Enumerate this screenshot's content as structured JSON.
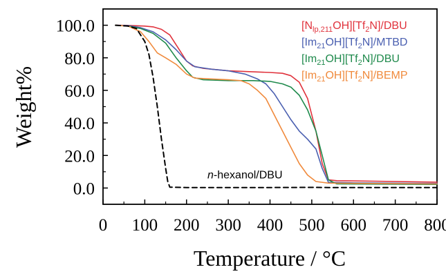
{
  "chart_data": {
    "type": "line",
    "title": "",
    "xlabel": "Temperature / °C",
    "ylabel": "Weight%",
    "xlim": [
      0,
      800
    ],
    "ylim": [
      -10,
      110
    ],
    "x_ticks": [
      0,
      100,
      200,
      300,
      400,
      500,
      600,
      700,
      800
    ],
    "x_tick_labels": [
      "0",
      "100",
      "200",
      "300",
      "400",
      "500",
      "600",
      "700",
      "800"
    ],
    "y_ticks": [
      0,
      20,
      40,
      60,
      80,
      100
    ],
    "y_tick_labels": [
      "0.0",
      "20.0",
      "40.0",
      "60.0",
      "80.0",
      "100.0"
    ],
    "grid": false,
    "legend_position": "top-right",
    "series": [
      {
        "legend_parts": [
          {
            "t": "[N"
          },
          {
            "t": "lp,211",
            "sub": true
          },
          {
            "t": "OH][Tf"
          },
          {
            "t": "2",
            "sub": true
          },
          {
            "t": "N]/DBU"
          }
        ],
        "color": "#e0323c",
        "dash": false,
        "points": [
          [
            30,
            100
          ],
          [
            60,
            99.9
          ],
          [
            100,
            99.5
          ],
          [
            120,
            99
          ],
          [
            140,
            97.5
          ],
          [
            160,
            94
          ],
          [
            180,
            86
          ],
          [
            200,
            78
          ],
          [
            215,
            75
          ],
          [
            240,
            73.5
          ],
          [
            300,
            72
          ],
          [
            350,
            71.5
          ],
          [
            400,
            71
          ],
          [
            430,
            70.5
          ],
          [
            450,
            69
          ],
          [
            470,
            65
          ],
          [
            490,
            55
          ],
          [
            510,
            35
          ],
          [
            525,
            15
          ],
          [
            540,
            5
          ],
          [
            560,
            4.5
          ],
          [
            650,
            4.2
          ],
          [
            800,
            3.6
          ]
        ]
      },
      {
        "legend_parts": [
          {
            "t": "[Im"
          },
          {
            "t": "21",
            "sub": true
          },
          {
            "t": "OH][Tf"
          },
          {
            "t": "2",
            "sub": true
          },
          {
            "t": "N]/MTBD"
          }
        ],
        "color": "#4a5fb0",
        "dash": false,
        "points": [
          [
            30,
            100
          ],
          [
            60,
            99.8
          ],
          [
            90,
            98.5
          ],
          [
            120,
            96
          ],
          [
            150,
            91
          ],
          [
            175,
            85
          ],
          [
            200,
            78
          ],
          [
            220,
            74.5
          ],
          [
            260,
            73
          ],
          [
            300,
            72
          ],
          [
            340,
            70
          ],
          [
            370,
            67
          ],
          [
            390,
            64
          ],
          [
            410,
            58
          ],
          [
            430,
            50
          ],
          [
            450,
            42
          ],
          [
            470,
            35
          ],
          [
            490,
            30
          ],
          [
            510,
            24
          ],
          [
            525,
            12
          ],
          [
            540,
            3.5
          ],
          [
            600,
            3.2
          ],
          [
            800,
            2.8
          ]
        ]
      },
      {
        "legend_parts": [
          {
            "t": "[Im"
          },
          {
            "t": "21",
            "sub": true
          },
          {
            "t": "OH][Tf"
          },
          {
            "t": "2",
            "sub": true
          },
          {
            "t": "N]/DBU"
          }
        ],
        "color": "#1f8a4c",
        "dash": false,
        "points": [
          [
            30,
            100
          ],
          [
            60,
            99.5
          ],
          [
            90,
            98
          ],
          [
            120,
            95
          ],
          [
            150,
            89
          ],
          [
            175,
            80
          ],
          [
            200,
            72
          ],
          [
            215,
            68
          ],
          [
            240,
            66.5
          ],
          [
            300,
            66
          ],
          [
            360,
            66
          ],
          [
            400,
            65.5
          ],
          [
            430,
            64
          ],
          [
            450,
            62
          ],
          [
            470,
            57
          ],
          [
            490,
            48
          ],
          [
            510,
            35
          ],
          [
            525,
            20
          ],
          [
            540,
            5
          ],
          [
            560,
            2.5
          ],
          [
            800,
            2.2
          ]
        ]
      },
      {
        "legend_parts": [
          {
            "t": "[Im"
          },
          {
            "t": "21",
            "sub": true
          },
          {
            "t": "OH][Tf"
          },
          {
            "t": "2",
            "sub": true
          },
          {
            "t": "N]/BEMP"
          }
        ],
        "color": "#f08a3c",
        "dash": false,
        "points": [
          [
            30,
            100
          ],
          [
            60,
            99.5
          ],
          [
            90,
            96
          ],
          [
            110,
            90
          ],
          [
            130,
            83
          ],
          [
            150,
            80
          ],
          [
            175,
            76
          ],
          [
            200,
            70
          ],
          [
            220,
            67.5
          ],
          [
            260,
            67
          ],
          [
            300,
            66.5
          ],
          [
            330,
            66
          ],
          [
            350,
            64
          ],
          [
            370,
            60
          ],
          [
            390,
            55
          ],
          [
            410,
            45
          ],
          [
            430,
            35
          ],
          [
            450,
            25
          ],
          [
            470,
            15
          ],
          [
            490,
            8
          ],
          [
            510,
            4
          ],
          [
            540,
            3
          ],
          [
            800,
            2.5
          ]
        ]
      },
      {
        "name": "n-hexanol/DBU",
        "color": "#000000",
        "dash": true,
        "points": [
          [
            30,
            100
          ],
          [
            60,
            99.5
          ],
          [
            80,
            98
          ],
          [
            100,
            90
          ],
          [
            110,
            82
          ],
          [
            120,
            68
          ],
          [
            130,
            50
          ],
          [
            140,
            30
          ],
          [
            150,
            12
          ],
          [
            155,
            4
          ],
          [
            160,
            0.5
          ],
          [
            200,
            0.3
          ],
          [
            400,
            0.3
          ],
          [
            500,
            0.4
          ],
          [
            540,
            0.3
          ],
          [
            800,
            0.3
          ]
        ]
      }
    ],
    "annotations": [
      {
        "label_parts": [
          {
            "t": "n",
            "italic": true
          },
          {
            "t": "-hexanol/DBU"
          }
        ],
        "x": 340,
        "y": 6
      }
    ]
  }
}
